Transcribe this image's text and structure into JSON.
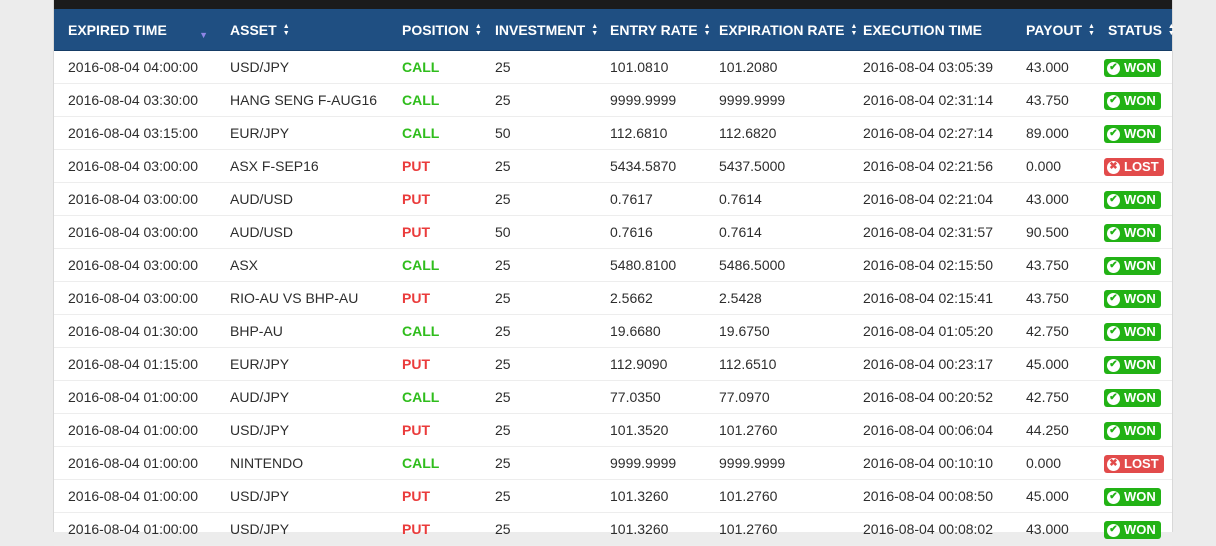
{
  "table": {
    "headers": [
      {
        "label": "EXPIRED TIME",
        "sort": "desc"
      },
      {
        "label": "ASSET",
        "sort": "both"
      },
      {
        "label": "POSITION",
        "sort": "both"
      },
      {
        "label": "INVESTMENT",
        "sort": "both"
      },
      {
        "label": "ENTRY RATE",
        "sort": "both"
      },
      {
        "label": "EXPIRATION RATE",
        "sort": "both"
      },
      {
        "label": "EXECUTION TIME",
        "sort": "none"
      },
      {
        "label": "PAYOUT",
        "sort": "both"
      },
      {
        "label": "STATUS",
        "sort": "both"
      }
    ],
    "rows": [
      [
        "2016-08-04 04:00:00",
        "USD/JPY",
        "CALL",
        "25",
        "101.0810",
        "101.2080",
        "2016-08-04 03:05:39",
        "43.000",
        "WON"
      ],
      [
        "2016-08-04 03:30:00",
        "HANG SENG F-AUG16",
        "CALL",
        "25",
        "9999.9999",
        "9999.9999",
        "2016-08-04 02:31:14",
        "43.750",
        "WON"
      ],
      [
        "2016-08-04 03:15:00",
        "EUR/JPY",
        "CALL",
        "50",
        "112.6810",
        "112.6820",
        "2016-08-04 02:27:14",
        "89.000",
        "WON"
      ],
      [
        "2016-08-04 03:00:00",
        "ASX F-SEP16",
        "PUT",
        "25",
        "5434.5870",
        "5437.5000",
        "2016-08-04 02:21:56",
        "0.000",
        "LOST"
      ],
      [
        "2016-08-04 03:00:00",
        "AUD/USD",
        "PUT",
        "25",
        "0.7617",
        "0.7614",
        "2016-08-04 02:21:04",
        "43.000",
        "WON"
      ],
      [
        "2016-08-04 03:00:00",
        "AUD/USD",
        "PUT",
        "50",
        "0.7616",
        "0.7614",
        "2016-08-04 02:31:57",
        "90.500",
        "WON"
      ],
      [
        "2016-08-04 03:00:00",
        "ASX",
        "CALL",
        "25",
        "5480.8100",
        "5486.5000",
        "2016-08-04 02:15:50",
        "43.750",
        "WON"
      ],
      [
        "2016-08-04 03:00:00",
        "RIO-AU VS BHP-AU",
        "PUT",
        "25",
        "2.5662",
        "2.5428",
        "2016-08-04 02:15:41",
        "43.750",
        "WON"
      ],
      [
        "2016-08-04 01:30:00",
        "BHP-AU",
        "CALL",
        "25",
        "19.6680",
        "19.6750",
        "2016-08-04 01:05:20",
        "42.750",
        "WON"
      ],
      [
        "2016-08-04 01:15:00",
        "EUR/JPY",
        "PUT",
        "25",
        "112.9090",
        "112.6510",
        "2016-08-04 00:23:17",
        "45.000",
        "WON"
      ],
      [
        "2016-08-04 01:00:00",
        "AUD/JPY",
        "CALL",
        "25",
        "77.0350",
        "77.0970",
        "2016-08-04 00:20:52",
        "42.750",
        "WON"
      ],
      [
        "2016-08-04 01:00:00",
        "USD/JPY",
        "PUT",
        "25",
        "101.3520",
        "101.2760",
        "2016-08-04 00:06:04",
        "44.250",
        "WON"
      ],
      [
        "2016-08-04 01:00:00",
        "NINTENDO",
        "CALL",
        "25",
        "9999.9999",
        "9999.9999",
        "2016-08-04 00:10:10",
        "0.000",
        "LOST"
      ],
      [
        "2016-08-04 01:00:00",
        "USD/JPY",
        "PUT",
        "25",
        "101.3260",
        "101.2760",
        "2016-08-04 00:08:50",
        "45.000",
        "WON"
      ],
      [
        "2016-08-04 01:00:00",
        "USD/JPY",
        "PUT",
        "25",
        "101.3260",
        "101.2760",
        "2016-08-04 00:08:02",
        "43.000",
        "WON"
      ]
    ]
  },
  "colors": {
    "header_bg": "#1f4f82",
    "call": "#2fbd1c",
    "put": "#ea3b3b",
    "won_badge": "#22b215",
    "lost_badge": "#e24b4b"
  },
  "icons": {
    "won": "check-circle-icon",
    "lost": "x-circle-icon"
  }
}
